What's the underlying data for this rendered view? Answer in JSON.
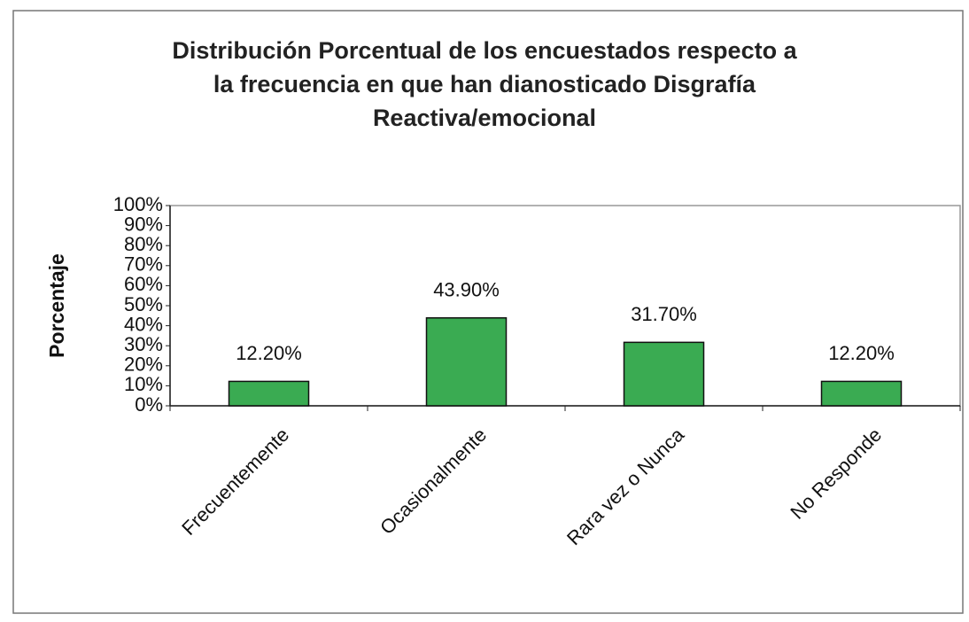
{
  "chart_data": {
    "type": "bar",
    "title": "Distribución Porcentual de los encuestados respecto a\nla  frecuencia en que han dianosticado Disgrafía\nReactiva/emocional",
    "y_label": "Porcentaje",
    "categories": [
      "Frecuentemente",
      "Ocasionalmente",
      "Rara vez o Nunca",
      "No Responde"
    ],
    "values": [
      12.2,
      43.9,
      31.7,
      12.2
    ],
    "value_labels": [
      "12.20%",
      "43.90%",
      "31.70%",
      "12.20%"
    ],
    "color": "#3aab52",
    "ylim": [
      0,
      100
    ],
    "yticks": [
      {
        "value": 0,
        "label": "0%"
      },
      {
        "value": 10,
        "label": "10%"
      },
      {
        "value": 20,
        "label": "20%"
      },
      {
        "value": 30,
        "label": "30%"
      },
      {
        "value": 40,
        "label": "40%"
      },
      {
        "value": 50,
        "label": "50%"
      },
      {
        "value": 60,
        "label": "60%"
      },
      {
        "value": 70,
        "label": "70%"
      },
      {
        "value": 80,
        "label": "80%"
      },
      {
        "value": 90,
        "label": "90%"
      },
      {
        "value": 100,
        "label": "100%"
      }
    ],
    "grid": false
  }
}
